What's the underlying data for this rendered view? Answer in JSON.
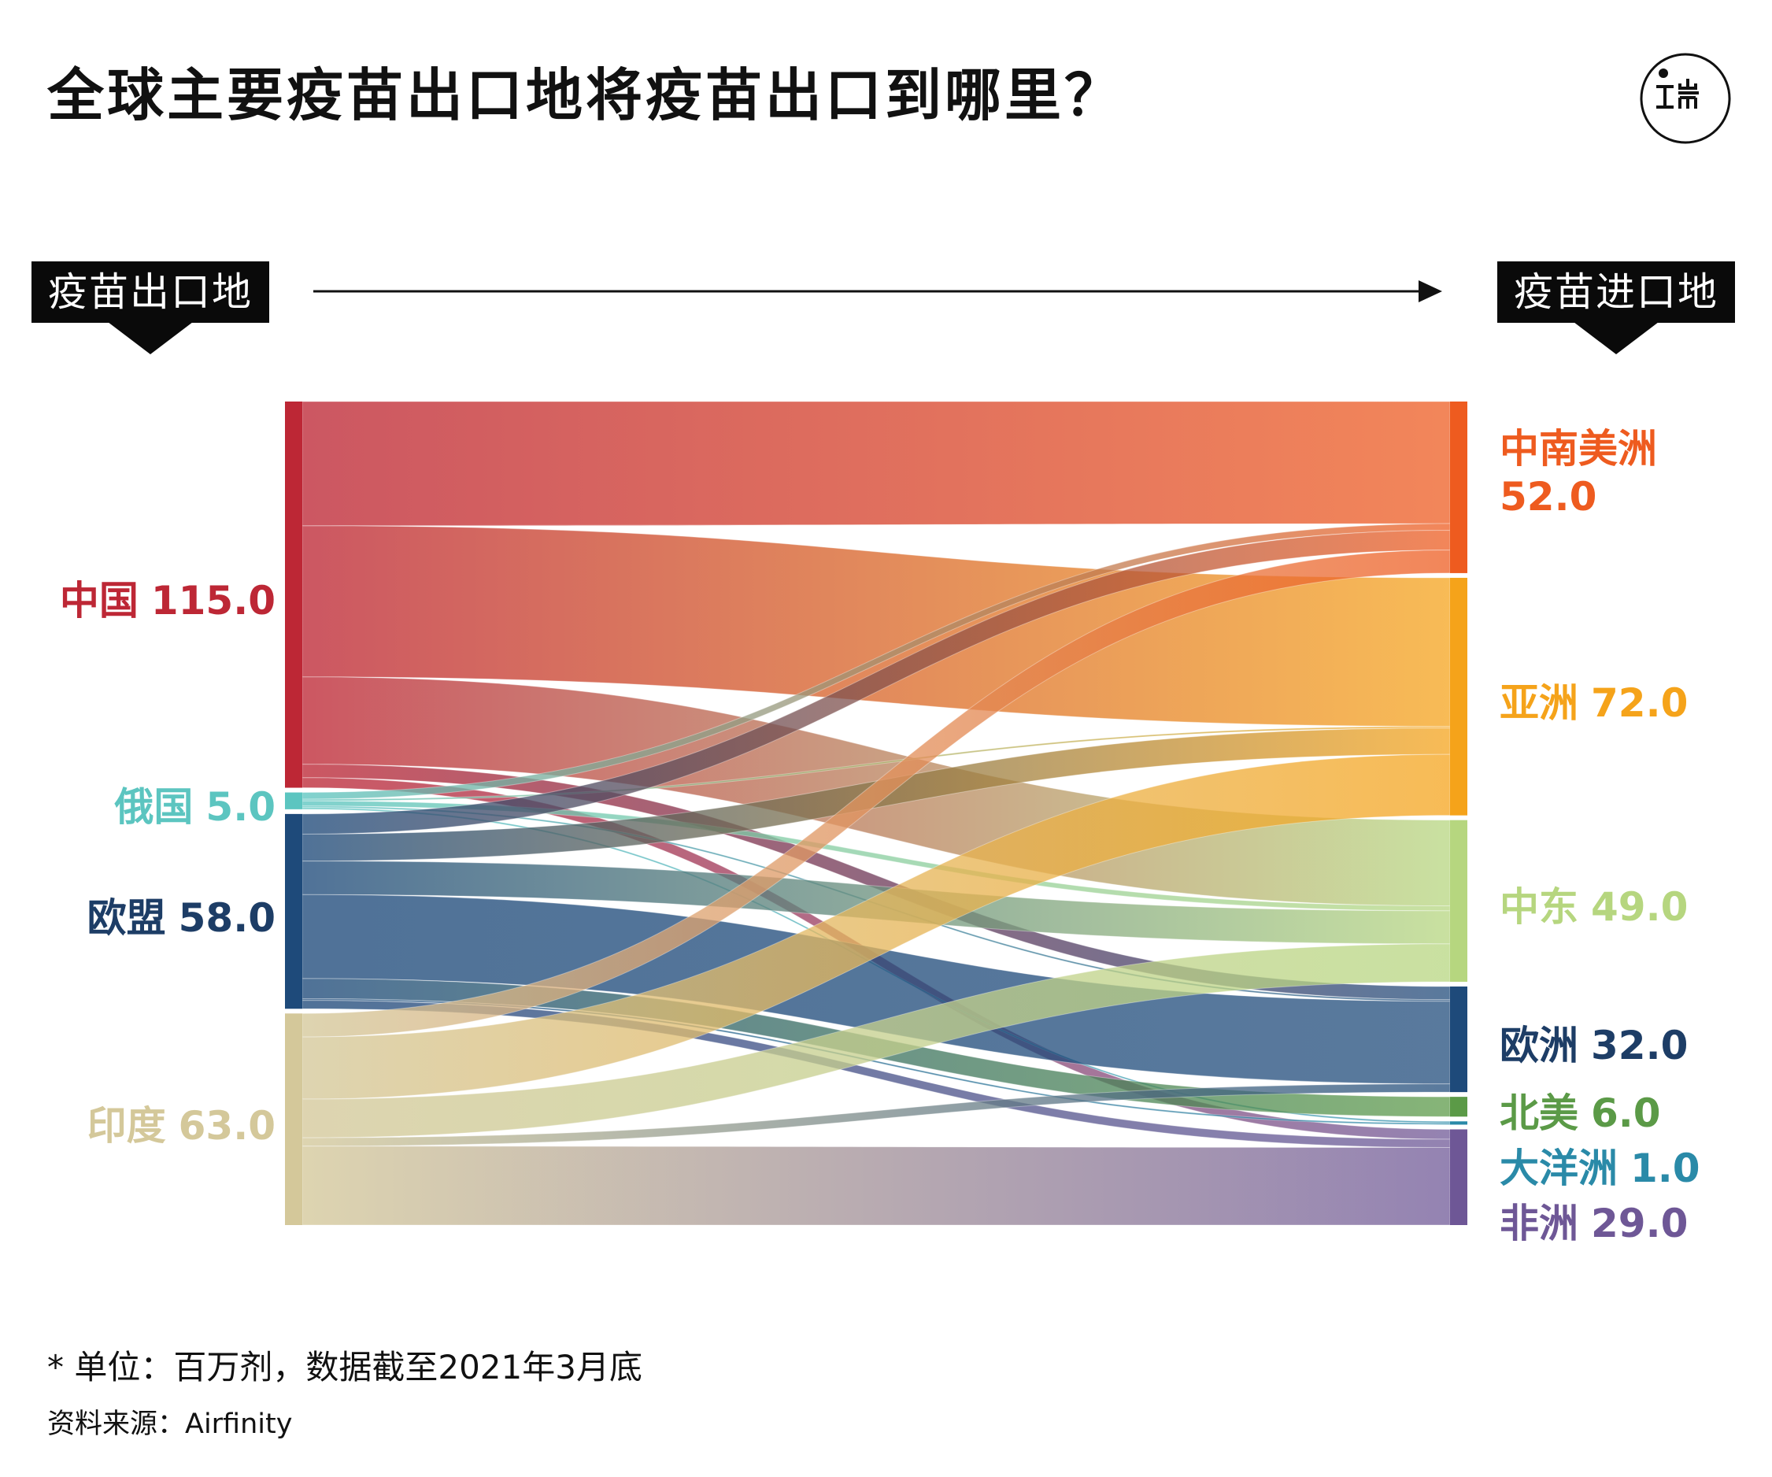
{
  "title": "全球主要疫苗出口地将疫苗出口到哪里？",
  "header": {
    "source_tag": "疫苗出口地",
    "target_tag": "疫苗进口地"
  },
  "colors": {
    "china": "#bd2735",
    "russia": "#5cc5c0",
    "eu": "#1e4a7a",
    "india": "#d4c89a",
    "latin_america": "#ee5b1f",
    "asia": "#f5a31a",
    "middle_east": "#b6d67f",
    "europe": "#1e4a7a",
    "north_america": "#5b9a47",
    "oceania": "#2a8aa8",
    "africa": "#6e5796"
  },
  "chart_data": {
    "type": "sankey",
    "unit_note": "* 单位：百万剂，数据截至2021年3月底",
    "source_note": "资料来源：Airfinity",
    "sources": [
      {
        "id": "china",
        "name": "中国",
        "value": 115.0,
        "value_label": "115.0",
        "color": "#bd2735"
      },
      {
        "id": "russia",
        "name": "俄国",
        "value": 5.0,
        "value_label": "5.0",
        "color": "#5cc5c0"
      },
      {
        "id": "eu",
        "name": "欧盟",
        "value": 58.0,
        "value_label": "58.0",
        "color": "#1e4a7a"
      },
      {
        "id": "india",
        "name": "印度",
        "value": 63.0,
        "value_label": "63.0",
        "color": "#d4c89a"
      }
    ],
    "targets": [
      {
        "id": "latin_america",
        "name": "中南美洲",
        "value": 52.0,
        "value_label": "52.0",
        "color": "#ee5b1f"
      },
      {
        "id": "asia",
        "name": "亚洲",
        "value": 72.0,
        "value_label": "72.0",
        "color": "#f5a31a"
      },
      {
        "id": "middle_east",
        "name": "中东",
        "value": 49.0,
        "value_label": "49.0",
        "color": "#b6d67f"
      },
      {
        "id": "europe",
        "name": "欧洲",
        "value": 32.0,
        "value_label": "32.0",
        "color": "#1e4a7a"
      },
      {
        "id": "north_america",
        "name": "北美",
        "value": 6.0,
        "value_label": "6.0",
        "color": "#5b9a47"
      },
      {
        "id": "oceania",
        "name": "大洋洲",
        "value": 1.0,
        "value_label": "1.0",
        "color": "#2a8aa8"
      },
      {
        "id": "africa",
        "name": "非洲",
        "value": 29.0,
        "value_label": "29.0",
        "color": "#6e5796"
      }
    ],
    "flows": [
      {
        "source": "china",
        "target": "latin_america",
        "value": 37.0
      },
      {
        "source": "china",
        "target": "asia",
        "value": 45.0
      },
      {
        "source": "china",
        "target": "middle_east",
        "value": 26.0
      },
      {
        "source": "china",
        "target": "europe",
        "value": 4.0
      },
      {
        "source": "china",
        "target": "africa",
        "value": 3.0
      },
      {
        "source": "russia",
        "target": "latin_america",
        "value": 2.0
      },
      {
        "source": "russia",
        "target": "asia",
        "value": 0.5
      },
      {
        "source": "russia",
        "target": "middle_east",
        "value": 1.5
      },
      {
        "source": "russia",
        "target": "europe",
        "value": 0.5
      },
      {
        "source": "russia",
        "target": "oceania",
        "value": 0.5
      },
      {
        "source": "eu",
        "target": "latin_america",
        "value": 6.0
      },
      {
        "source": "eu",
        "target": "asia",
        "value": 8.0
      },
      {
        "source": "eu",
        "target": "middle_east",
        "value": 10.0
      },
      {
        "source": "eu",
        "target": "europe",
        "value": 25.0
      },
      {
        "source": "eu",
        "target": "north_america",
        "value": 6.0
      },
      {
        "source": "eu",
        "target": "oceania",
        "value": 0.5
      },
      {
        "source": "eu",
        "target": "africa",
        "value": 2.5
      },
      {
        "source": "india",
        "target": "latin_america",
        "value": 7.0
      },
      {
        "source": "india",
        "target": "asia",
        "value": 18.5
      },
      {
        "source": "india",
        "target": "middle_east",
        "value": 11.5
      },
      {
        "source": "india",
        "target": "europe",
        "value": 2.5
      },
      {
        "source": "india",
        "target": "africa",
        "value": 23.5
      }
    ]
  }
}
